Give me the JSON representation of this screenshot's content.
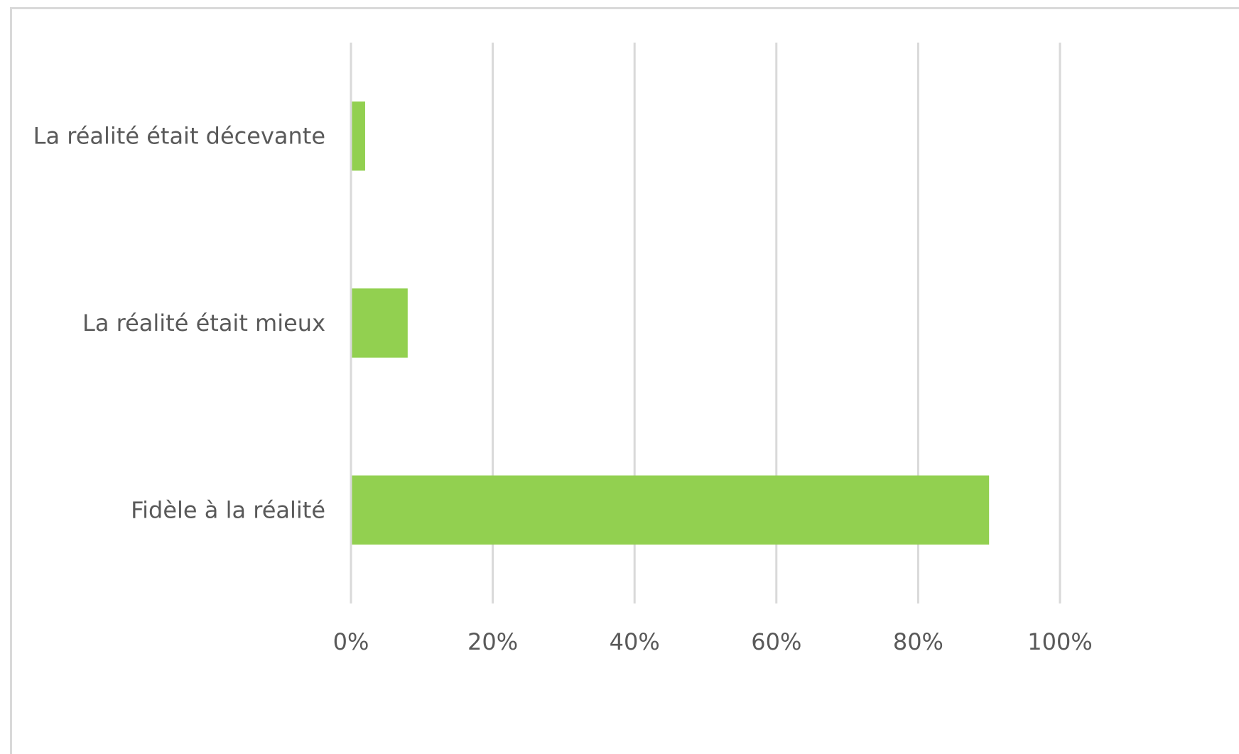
{
  "chart_data": {
    "type": "bar",
    "orientation": "horizontal",
    "categories": [
      "La réalité était décevante",
      "La réalité était mieux",
      "Fidèle à la réalité"
    ],
    "values": [
      2,
      8,
      90
    ],
    "x_ticks": [
      "0%",
      "20%",
      "40%",
      "60%",
      "80%",
      "100%"
    ],
    "xlim": [
      0,
      100
    ],
    "title": "",
    "xlabel": "",
    "ylabel": "",
    "grid": true,
    "bar_color": "#92d050",
    "grid_color": "#d9d9d9"
  }
}
